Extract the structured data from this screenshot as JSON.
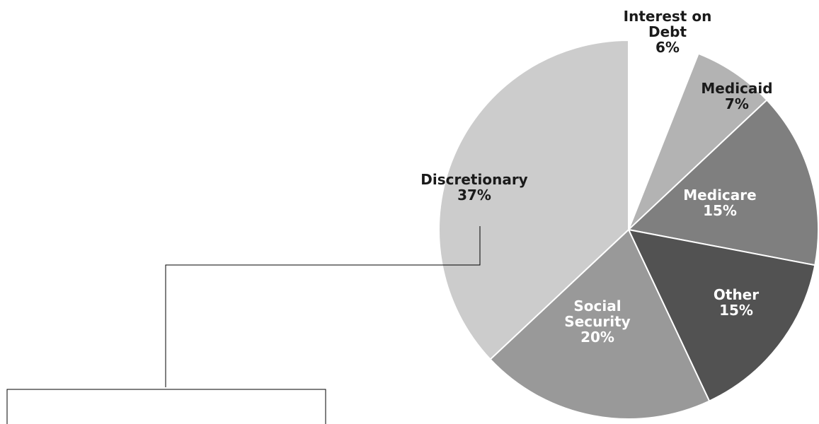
{
  "chart_data": {
    "type": "pie",
    "title": "",
    "start_angle_deg": 0,
    "direction": "clockwise",
    "slices": [
      {
        "label_lines": [
          "Interest on",
          "Debt"
        ],
        "value_label": "6%",
        "value": 6,
        "color": "#ffffff",
        "text_color": "#1a1a1a"
      },
      {
        "label_lines": [
          "Medicaid"
        ],
        "value_label": "7%",
        "value": 7,
        "color": "#b3b3b3",
        "text_color": "#1a1a1a"
      },
      {
        "label_lines": [
          "Medicare"
        ],
        "value_label": "15%",
        "value": 15,
        "color": "#7f7f7f",
        "text_color": "#ffffff"
      },
      {
        "label_lines": [
          "Other"
        ],
        "value_label": "15%",
        "value": 15,
        "color": "#525252",
        "text_color": "#ffffff"
      },
      {
        "label_lines": [
          "Social",
          "Security"
        ],
        "value_label": "20%",
        "value": 20,
        "color": "#999999",
        "text_color": "#ffffff"
      },
      {
        "label_lines": [
          "Discretionary"
        ],
        "value_label": "37%",
        "value": 37,
        "color": "#cccccc",
        "text_color": "#1a1a1a"
      }
    ]
  }
}
